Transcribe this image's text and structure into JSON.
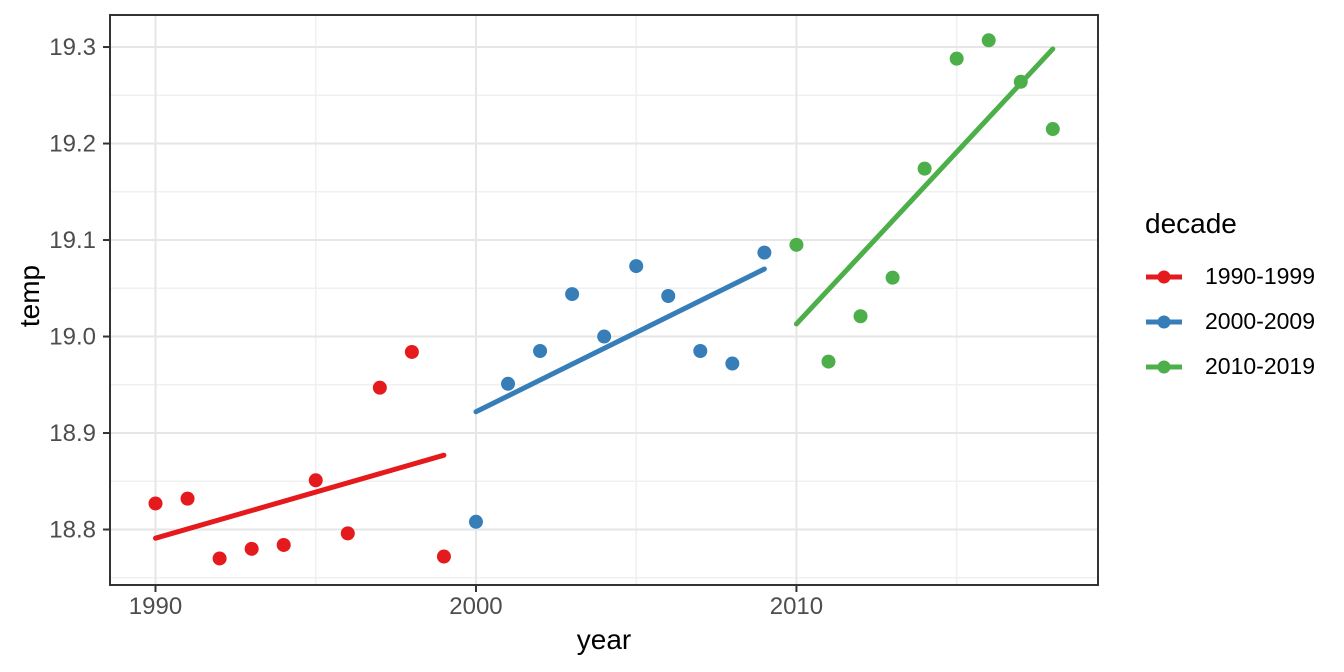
{
  "colors": {
    "background": "#FFFFFF",
    "panel_border": "#333333",
    "grid_major": "#E6E6E6",
    "grid_minor": "#F0F0F0",
    "tick_mark": "#333333",
    "tick_label": "#4D4D4D",
    "axis_title": "#000000"
  },
  "chart_data": {
    "type": "scatter",
    "title": "",
    "xlabel": "year",
    "ylabel": "temp",
    "legend_title": "decade",
    "legend_position": "right",
    "grid": true,
    "xlim": [
      1988.58,
      2019.41
    ],
    "ylim": [
      18.7425,
      19.3332
    ],
    "x_ticks": [
      {
        "v": 1990,
        "label": "1990"
      },
      {
        "v": 2000,
        "label": "2000"
      },
      {
        "v": 2010,
        "label": "2010"
      }
    ],
    "y_ticks": [
      {
        "v": 18.8,
        "label": "18.8"
      },
      {
        "v": 18.9,
        "label": "18.9"
      },
      {
        "v": 19.0,
        "label": "19.0"
      },
      {
        "v": 19.1,
        "label": "19.1"
      },
      {
        "v": 19.2,
        "label": "19.2"
      },
      {
        "v": 19.3,
        "label": "19.3"
      }
    ],
    "x_minor": [
      1995,
      2005,
      2015
    ],
    "y_minor": [
      18.75,
      18.85,
      18.95,
      19.05,
      19.15,
      19.25
    ],
    "series": [
      {
        "name": "1990-1999",
        "color": "#E41A1C",
        "x": [
          1990,
          1991,
          1992,
          1993,
          1994,
          1995,
          1996,
          1997,
          1998,
          1999
        ],
        "y": [
          18.827,
          18.832,
          18.77,
          18.78,
          18.784,
          18.851,
          18.796,
          18.947,
          18.984,
          18.772
        ],
        "trend": {
          "x1": 1990,
          "y1": 18.791,
          "x2": 1999,
          "y2": 18.877
        }
      },
      {
        "name": "2000-2009",
        "color": "#377EB8",
        "x": [
          2000,
          2001,
          2002,
          2003,
          2004,
          2005,
          2006,
          2007,
          2008,
          2009
        ],
        "y": [
          18.808,
          18.951,
          18.985,
          19.044,
          19.0,
          19.073,
          19.042,
          18.985,
          18.972,
          19.087
        ],
        "trend": {
          "x1": 2000,
          "y1": 18.922,
          "x2": 2009,
          "y2": 19.07
        }
      },
      {
        "name": "2010-2019",
        "color": "#4DAF4A",
        "x": [
          2010,
          2011,
          2012,
          2013,
          2014,
          2015,
          2016,
          2017,
          2018
        ],
        "y": [
          19.095,
          18.974,
          19.021,
          19.061,
          19.174,
          19.288,
          19.307,
          19.264,
          19.215
        ],
        "trend": {
          "x1": 2010,
          "y1": 19.013,
          "x2": 2018,
          "y2": 19.298
        }
      }
    ]
  }
}
